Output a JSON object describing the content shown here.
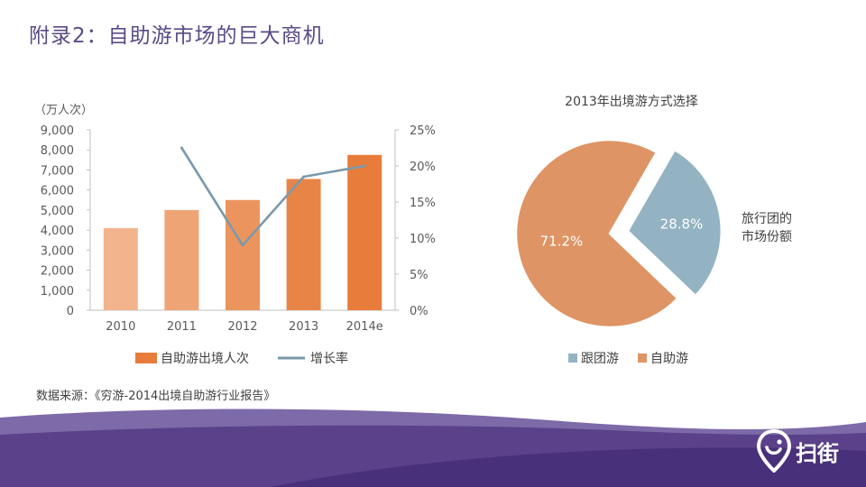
{
  "title": "附录2：自助游市场的巨大商机",
  "source_note": "数据来源：《穷游-2014出境自助游行业报告》",
  "brand": {
    "name": "扫街",
    "logo_icon": "map-pin-logo-icon"
  },
  "colors": {
    "title": "#5b4a86",
    "bar_shades": [
      "#f2b48c",
      "#efa475",
      "#ec945e",
      "#e98447",
      "#e87c3a"
    ],
    "bar_legend": "#e87c3a",
    "line": "#7a9aaa",
    "pie_self": "#de9464",
    "pie_group": "#93b3c2",
    "footer": "#523a80"
  },
  "chart_data": [
    {
      "type": "bar",
      "unit_label": "（万人次）",
      "categories": [
        "2010",
        "2011",
        "2012",
        "2013",
        "2014e"
      ],
      "series": [
        {
          "name": "自助游出境人次",
          "type": "bar",
          "values": [
            4100,
            5000,
            5500,
            6550,
            7750
          ]
        },
        {
          "name": "增长率",
          "type": "line",
          "axis": "right",
          "values": [
            null,
            22.5,
            9.0,
            18.5,
            20.0
          ]
        }
      ],
      "left_ticks": [
        0,
        1000,
        2000,
        3000,
        4000,
        5000,
        6000,
        7000,
        8000,
        9000
      ],
      "left_tick_labels": [
        "0",
        "1,000",
        "2,000",
        "3,000",
        "4,000",
        "5,000",
        "6,000",
        "7,000",
        "8,000",
        "9,000"
      ],
      "right_ticks": [
        0,
        5,
        10,
        15,
        20,
        25
      ],
      "right_tick_labels": [
        "0%",
        "5%",
        "10%",
        "15%",
        "20%",
        "25%"
      ],
      "ylim": [
        0,
        9000
      ],
      "y2lim": [
        0,
        25
      ],
      "legend_position": "bottom"
    },
    {
      "type": "pie",
      "title": "2013年出境游方式选择",
      "slices": [
        {
          "name": "跟团游",
          "value": 28.8,
          "label": "28.8%"
        },
        {
          "name": "自助游",
          "value": 71.2,
          "label": "71.2%"
        }
      ],
      "callout": "旅行团的\n市场份额",
      "legend_position": "bottom"
    }
  ]
}
